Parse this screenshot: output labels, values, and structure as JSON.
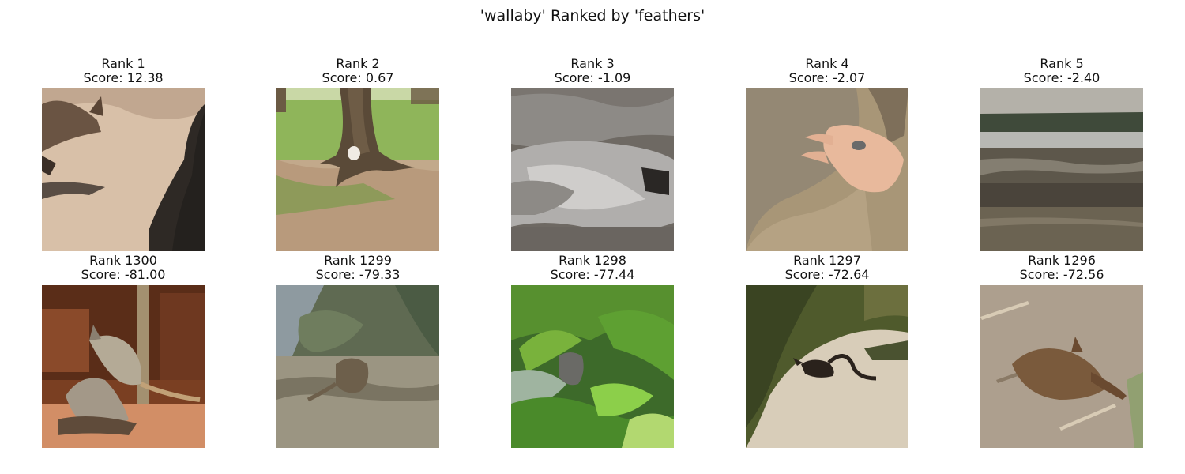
{
  "title": "'wallaby' Ranked by 'feathers'",
  "panels": [
    {
      "rank": "Rank 1",
      "score": "Score: 12.38"
    },
    {
      "rank": "Rank 2",
      "score": "Score: 0.67"
    },
    {
      "rank": "Rank 3",
      "score": "Score: -1.09"
    },
    {
      "rank": "Rank 4",
      "score": "Score: -2.07"
    },
    {
      "rank": "Rank 5",
      "score": "Score: -2.40"
    },
    {
      "rank": "Rank 1300",
      "score": "Score: -81.00"
    },
    {
      "rank": "Rank 1299",
      "score": "Score: -79.33"
    },
    {
      "rank": "Rank 1298",
      "score": "Score: -77.44"
    },
    {
      "rank": "Rank 1297",
      "score": "Score: -72.64"
    },
    {
      "rank": "Rank 1296",
      "score": "Score: -72.56"
    }
  ]
}
